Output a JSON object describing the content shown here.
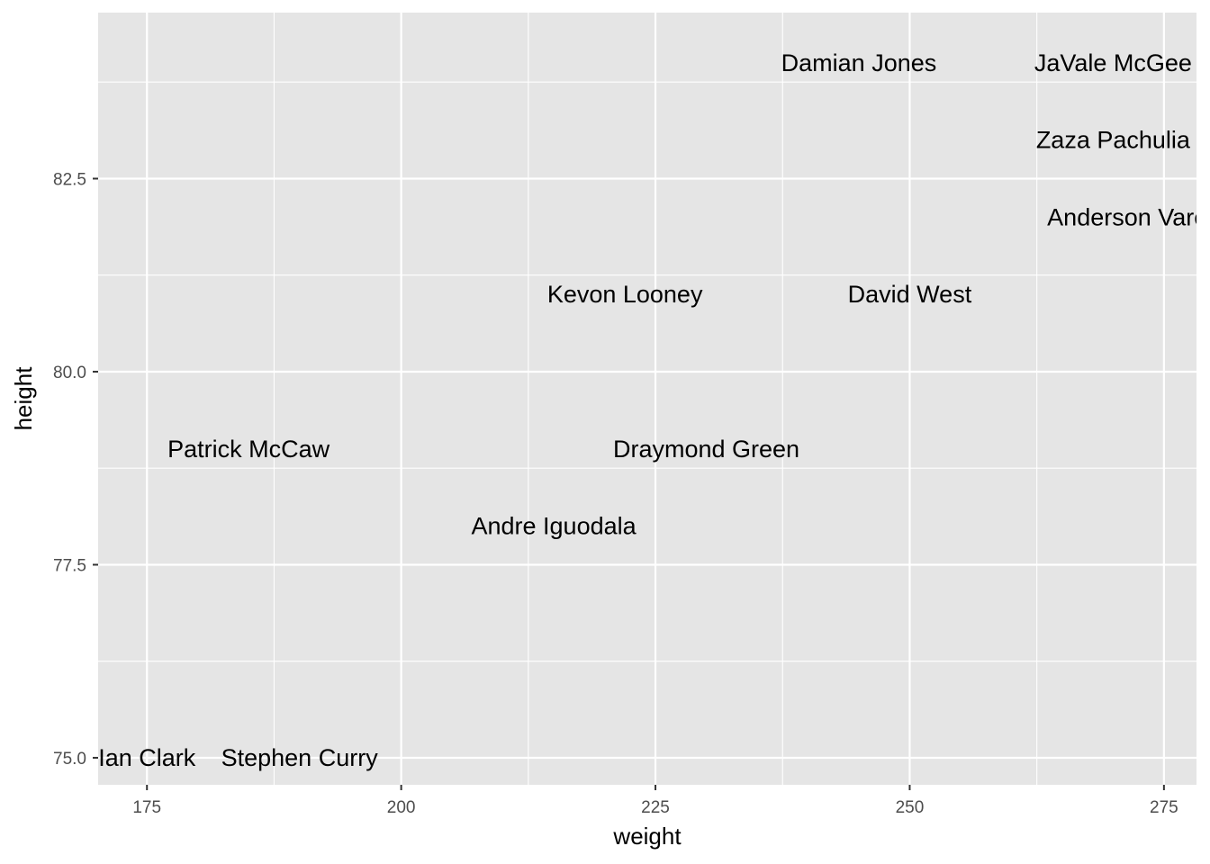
{
  "chart_data": {
    "type": "scatter",
    "geom": "text",
    "xlabel": "weight",
    "ylabel": "height",
    "xlim": [
      170.2,
      278.2
    ],
    "ylim": [
      74.65,
      84.65
    ],
    "x_ticks": [
      175,
      200,
      225,
      250,
      275
    ],
    "x_tick_labels": [
      "175",
      "200",
      "225",
      "250",
      "275"
    ],
    "y_ticks": [
      75.0,
      77.5,
      80.0,
      82.5
    ],
    "y_tick_labels": [
      "75.0",
      "77.5",
      "80.0",
      "82.5"
    ],
    "grid": true,
    "background": "#e5e5e5",
    "grid_color": "#ffffff",
    "points": [
      {
        "label": "Damian Jones",
        "x": 245,
        "y": 84
      },
      {
        "label": "JaVale McGee",
        "x": 270,
        "y": 84
      },
      {
        "label": "Zaza Pachulia",
        "x": 270,
        "y": 83
      },
      {
        "label": "Anderson Varejao",
        "x": 273,
        "y": 82
      },
      {
        "label": "Kevon Looney",
        "x": 222,
        "y": 81
      },
      {
        "label": "David West",
        "x": 250,
        "y": 81
      },
      {
        "label": "Patrick McCaw",
        "x": 185,
        "y": 79
      },
      {
        "label": "Draymond Green",
        "x": 230,
        "y": 79
      },
      {
        "label": "Andre Iguodala",
        "x": 215,
        "y": 78
      },
      {
        "label": "Ian Clark",
        "x": 175,
        "y": 75
      },
      {
        "label": "Stephen Curry",
        "x": 190,
        "y": 75
      }
    ]
  }
}
